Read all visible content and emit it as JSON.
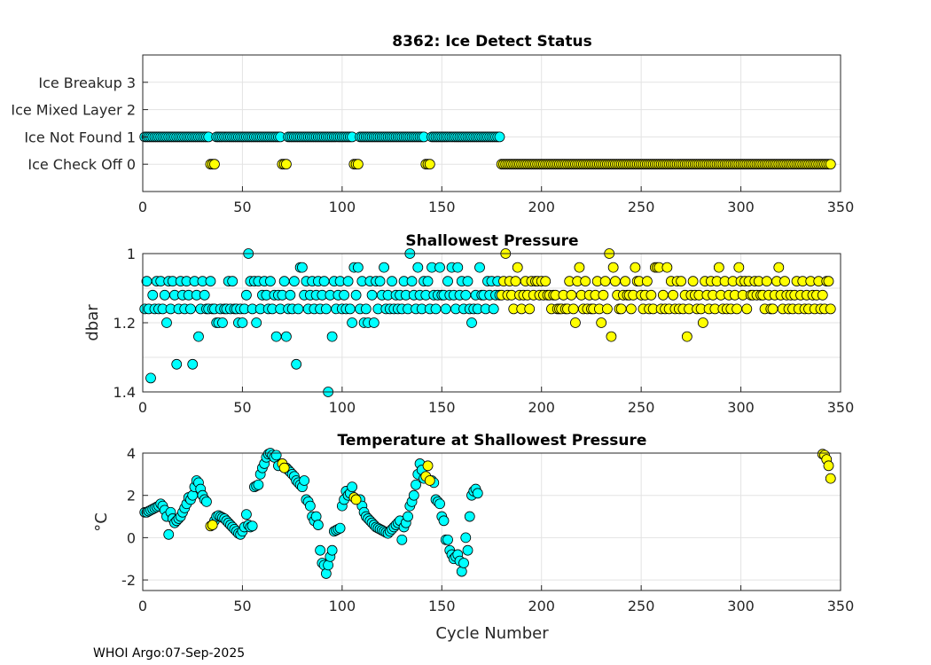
{
  "colors": {
    "ice_on": "#00FFFF",
    "ice_off": "#FFFF00",
    "edge": "#000000"
  },
  "footer": "WHOI Argo:07-Sep-2025",
  "chart_data": [
    {
      "type": "scatter",
      "title": "8362: Ice Detect Status",
      "xlabel": "",
      "ylabel": "",
      "xlim": [
        0,
        350
      ],
      "ylim": [
        -1,
        4
      ],
      "xticks": [
        0,
        50,
        100,
        150,
        200,
        250,
        300,
        350
      ],
      "yticks": [
        0,
        1,
        2,
        3
      ],
      "ytick_labels": [
        "Ice Check Off 0",
        "Ice Not Found 1",
        "Ice Mixed Layer 2",
        "Ice Breakup 3"
      ],
      "grid": true,
      "series": [
        {
          "name": "ice-not-found",
          "color": "cyan",
          "value": 1,
          "cycle_range": [
            1,
            179
          ],
          "except": [
            34,
            35,
            36,
            70,
            71,
            72,
            106,
            107,
            108,
            142,
            143,
            144
          ]
        },
        {
          "name": "ice-check-off-early",
          "color": "yellow",
          "value": 0,
          "cycles": [
            34,
            35,
            36,
            70,
            71,
            72,
            106,
            107,
            108,
            142,
            143,
            144
          ]
        },
        {
          "name": "ice-check-off",
          "color": "yellow",
          "value": 0,
          "cycle_range": [
            180,
            345
          ]
        }
      ]
    },
    {
      "type": "scatter",
      "title": "Shallowest Pressure",
      "xlabel": "",
      "ylabel": "dbar",
      "xlim": [
        0,
        350
      ],
      "ylim": [
        1.4,
        1.0
      ],
      "y_reversed": true,
      "xticks": [
        0,
        50,
        100,
        150,
        200,
        250,
        300,
        350
      ],
      "yticks": [
        1,
        1.2,
        1.4
      ],
      "grid": true,
      "series": [
        {
          "name": "ice-on",
          "color": "cyan",
          "start_cycle": 1,
          "values": [
            1.16,
            1.08,
            1.16,
            1.36,
            1.12,
            1.16,
            1.08,
            1.16,
            1.08,
            1.16,
            1.12,
            1.2,
            1.08,
            1.16,
            1.08,
            1.12,
            1.32,
            1.16,
            1.08,
            1.12,
            1.16,
            1.08,
            1.12,
            1.16,
            1.32,
            1.08,
            1.12,
            1.24,
            1.16,
            1.08,
            1.12,
            1.16,
            1.16,
            1.08,
            1.16,
            1.16,
            1.2,
            1.2,
            1.16,
            1.2,
            1.16,
            1.16,
            1.08,
            1.16,
            1.08,
            1.16,
            1.16,
            1.2,
            1.16,
            1.2,
            1.16,
            1.12,
            1.0,
            1.08,
            1.16,
            1.08,
            1.2,
            1.08,
            1.16,
            1.12,
            1.08,
            1.12,
            1.16,
            1.08,
            1.16,
            1.12,
            1.24,
            1.12,
            1.16,
            1.12,
            1.08,
            1.24,
            1.16,
            1.12,
            1.16,
            1.08,
            1.32,
            1.16,
            1.04,
            1.04,
            1.12,
            1.08,
            1.16,
            1.12,
            1.08,
            1.16,
            1.12,
            1.08,
            1.16,
            1.12,
            1.08,
            1.16,
            1.4,
            1.12,
            1.24,
            1.08,
            1.16,
            1.12,
            1.08,
            1.16,
            1.12,
            1.16,
            1.08,
            1.16,
            1.2,
            1.04,
            1.12,
            1.04,
            1.16,
            1.08,
            1.2,
            1.16,
            1.2,
            1.08,
            1.12,
            1.2,
            1.08,
            1.16,
            1.08,
            1.12,
            1.04,
            1.16,
            1.12,
            1.16,
            1.08,
            1.16,
            1.12,
            1.16,
            1.12,
            1.16,
            1.08,
            1.12,
            1.16,
            1.0,
            1.08,
            1.12,
            1.16,
            1.04,
            1.12,
            1.16,
            1.08,
            1.12,
            1.08,
            1.16,
            1.04,
            1.12,
            1.16,
            1.12,
            1.04,
            1.12,
            1.12,
            1.16,
            1.08,
            1.12,
            1.04,
            1.12,
            1.16,
            1.04,
            1.12,
            1.08,
            1.16,
            1.12,
            1.08,
            1.16,
            1.2,
            1.16,
            1.12,
            1.16,
            1.04,
            1.12,
            1.12,
            1.16,
            1.08,
            1.12,
            1.08,
            1.16,
            1.12,
            1.08,
            1.12
          ]
        },
        {
          "name": "ice-off",
          "color": "yellow",
          "start_cycle": 180,
          "values": [
            1.12,
            1.08,
            1.0,
            1.12,
            1.08,
            1.12,
            1.16,
            1.08,
            1.04,
            1.12,
            1.16,
            1.12,
            1.08,
            1.12,
            1.16,
            1.08,
            1.12,
            1.08,
            1.08,
            1.12,
            1.08,
            1.12,
            1.08,
            1.12,
            1.12,
            1.16,
            1.12,
            1.12,
            1.16,
            1.16,
            1.16,
            1.12,
            1.16,
            1.16,
            1.08,
            1.12,
            1.16,
            1.2,
            1.08,
            1.04,
            1.12,
            1.16,
            1.08,
            1.16,
            1.12,
            1.16,
            1.16,
            1.12,
            1.08,
            1.16,
            1.2,
            1.12,
            1.08,
            1.16,
            1.0,
            1.24,
            1.04,
            1.08,
            1.12,
            1.16,
            1.16,
            1.12,
            1.08,
            1.12,
            1.12,
            1.16,
            1.12,
            1.04,
            1.08,
            1.08,
            1.12,
            1.16,
            1.12,
            1.08,
            1.16,
            1.12,
            1.16,
            1.04,
            1.04,
            1.04,
            1.16,
            1.12,
            1.16,
            1.04,
            1.16,
            1.08,
            1.12,
            1.16,
            1.08,
            1.16,
            1.08,
            1.16,
            1.12,
            1.24,
            1.16,
            1.12,
            1.08,
            1.12,
            1.16,
            1.12,
            1.16,
            1.2,
            1.08,
            1.12,
            1.16,
            1.08,
            1.12,
            1.16,
            1.08,
            1.04,
            1.12,
            1.16,
            1.08,
            1.16,
            1.12,
            1.16,
            1.08,
            1.12,
            1.16,
            1.04,
            1.08,
            1.12,
            1.08,
            1.16,
            1.08,
            1.12,
            1.12,
            1.08,
            1.12,
            1.08,
            1.12,
            1.12,
            1.16,
            1.08,
            1.12,
            1.16,
            1.16,
            1.12,
            1.08,
            1.04,
            1.12,
            1.16,
            1.08,
            1.12,
            1.16,
            1.12,
            1.16,
            1.12,
            1.08,
            1.16,
            1.12,
            1.08,
            1.16,
            1.12,
            1.16,
            1.08,
            1.12,
            1.16,
            1.12,
            1.08,
            1.16,
            1.12,
            1.16,
            1.08,
            1.08,
            1.16
          ]
        }
      ]
    },
    {
      "type": "scatter",
      "title": "Temperature at Shallowest Pressure",
      "xlabel": "Cycle Number",
      "ylabel": "°C",
      "xlim": [
        0,
        350
      ],
      "ylim": [
        -2.5,
        4
      ],
      "xticks": [
        0,
        50,
        100,
        150,
        200,
        250,
        300,
        350
      ],
      "yticks": [
        -2,
        0,
        2,
        4
      ],
      "grid": true,
      "series": [
        {
          "name": "ice-on",
          "color": "cyan",
          "start_cycle": 1,
          "values": [
            1.2,
            1.2,
            1.25,
            1.3,
            1.35,
            1.4,
            1.45,
            1.5,
            1.6,
            1.5,
            1.3,
            1.0,
            0.15,
            1.2,
            0.9,
            0.7,
            0.8,
            0.9,
            1.0,
            1.2,
            1.4,
            1.6,
            1.9,
            1.8,
            2.0,
            2.4,
            2.7,
            2.6,
            2.3,
            2.0,
            1.8,
            1.7,
            null,
            null,
            null,
            0.8,
            1.0,
            1.05,
            1.0,
            0.95,
            0.9,
            0.8,
            0.7,
            0.6,
            0.5,
            0.4,
            0.3,
            0.2,
            0.15,
            0.3,
            0.5,
            1.1,
            0.6,
            0.5,
            0.55,
            2.4,
            2.45,
            2.5,
            3.0,
            3.3,
            3.5,
            3.8,
            3.95,
            4.0,
            3.9,
            3.8,
            3.9,
            3.4,
            null,
            null,
            null,
            3.3,
            3.2,
            3.1,
            3.0,
            2.9,
            2.7,
            2.6,
            2.5,
            2.4,
            2.7,
            1.8,
            1.7,
            1.5,
            1.0,
            0.8,
            1.0,
            0.6,
            -0.6,
            -1.2,
            -1.3,
            -1.7,
            -1.3,
            -0.9,
            -0.6,
            0.3,
            0.35,
            0.4,
            0.45,
            1.5,
            1.8,
            2.2,
            2.0,
            2.1,
            2.4,
            null,
            null,
            null,
            1.8,
            1.5,
            1.2,
            1.0,
            0.9,
            0.8,
            0.7,
            0.6,
            0.5,
            0.45,
            0.4,
            0.35,
            0.3,
            0.25,
            0.2,
            0.3,
            0.4,
            0.5,
            0.6,
            0.7,
            0.8,
            -0.1,
            0.5,
            0.7,
            1.0,
            1.5,
            1.7,
            2.0,
            2.5,
            3.0,
            3.5,
            3.2,
            2.8,
            null,
            null,
            null,
            2.7,
            2.6,
            1.8,
            1.7,
            1.6,
            1.0,
            0.8,
            -0.1,
            -0.1,
            -0.6,
            -0.8,
            -1.0,
            -0.9,
            -0.8,
            -1.1,
            -1.6,
            -1.2,
            0.0,
            -0.6,
            1.0,
            2.0,
            2.2,
            2.3,
            2.1
          ]
        },
        {
          "name": "ice-off",
          "color": "yellow",
          "cycles": [
            34,
            35,
            70,
            71,
            106,
            107,
            142,
            143,
            144,
            341,
            342,
            343,
            344,
            345
          ],
          "values": [
            0.55,
            0.6,
            3.5,
            3.3,
            1.9,
            1.8,
            2.9,
            3.4,
            2.7,
            3.95,
            3.9,
            3.7,
            3.4,
            2.8
          ]
        }
      ]
    }
  ]
}
